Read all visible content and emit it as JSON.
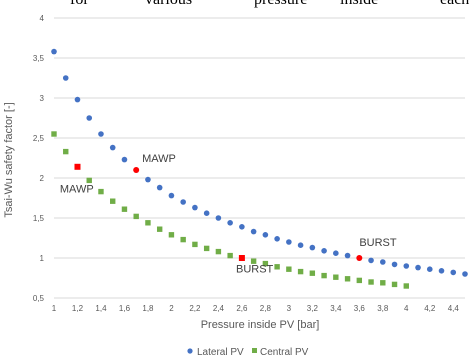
{
  "header_words": [
    "for",
    "various",
    "pressure",
    "inside",
    "each"
  ],
  "chart_data": {
    "type": "scatter",
    "title": "",
    "xlabel": "Pressure inside PV [bar]",
    "ylabel": "Tsai-Wu safety factor [-]",
    "xlim": [
      1,
      4.5
    ],
    "ylim": [
      0.5,
      4
    ],
    "xticks": [
      "1",
      "1,2",
      "1,4",
      "1,6",
      "1,8",
      "2",
      "2,2",
      "2,4",
      "2,6",
      "2,8",
      "3",
      "3,2",
      "3,4",
      "3,6",
      "3,8",
      "4",
      "4,2",
      "4,4"
    ],
    "yticks": [
      "0,5",
      "1",
      "1,5",
      "2",
      "2,5",
      "3",
      "3,5",
      "4"
    ],
    "grid": "horizontal",
    "legend_position": "bottom",
    "colors": {
      "lateral": "#4472C4",
      "central": "#70AD47",
      "highlight": "#FF0000"
    },
    "series": [
      {
        "name": "Lateral PV",
        "marker": "circle",
        "x": [
          1,
          1.1,
          1.2,
          1.3,
          1.4,
          1.5,
          1.6,
          1.7,
          1.8,
          1.9,
          2,
          2.1,
          2.2,
          2.3,
          2.4,
          2.5,
          2.6,
          2.7,
          2.8,
          2.9,
          3,
          3.1,
          3.2,
          3.3,
          3.4,
          3.5,
          3.6,
          3.7,
          3.8,
          3.9,
          4,
          4.1,
          4.2,
          4.3,
          4.4,
          4.5
        ],
        "y": [
          3.58,
          3.25,
          2.98,
          2.75,
          2.55,
          2.38,
          2.23,
          2.1,
          1.98,
          1.88,
          1.78,
          1.7,
          1.63,
          1.56,
          1.5,
          1.44,
          1.39,
          1.33,
          1.29,
          1.24,
          1.2,
          1.16,
          1.13,
          1.09,
          1.06,
          1.03,
          1.0,
          0.97,
          0.95,
          0.92,
          0.9,
          0.88,
          0.86,
          0.84,
          0.82,
          0.8
        ]
      },
      {
        "name": "Central PV",
        "marker": "square",
        "x": [
          1,
          1.1,
          1.2,
          1.3,
          1.4,
          1.5,
          1.6,
          1.7,
          1.8,
          1.9,
          2,
          2.1,
          2.2,
          2.3,
          2.4,
          2.5,
          2.6,
          2.7,
          2.8,
          2.9,
          3,
          3.1,
          3.2,
          3.3,
          3.4,
          3.5,
          3.6,
          3.7,
          3.8,
          3.9,
          4
        ],
        "y": [
          2.55,
          2.33,
          2.14,
          1.97,
          1.83,
          1.71,
          1.61,
          1.52,
          1.44,
          1.36,
          1.29,
          1.23,
          1.17,
          1.12,
          1.08,
          1.03,
          1.0,
          0.96,
          0.93,
          0.89,
          0.86,
          0.83,
          0.81,
          0.78,
          0.76,
          0.74,
          0.72,
          0.7,
          0.69,
          0.67,
          0.65
        ]
      }
    ],
    "highlights": [
      {
        "series": "Lateral PV",
        "x": 1.7,
        "y": 2.1
      },
      {
        "series": "Lateral PV",
        "x": 3.6,
        "y": 1.0
      },
      {
        "series": "Central PV",
        "x": 1.2,
        "y": 2.14
      },
      {
        "series": "Central PV",
        "x": 2.6,
        "y": 1.0
      }
    ],
    "annotations": [
      {
        "text": "MAWP",
        "x": 1.75,
        "y": 2.2
      },
      {
        "text": "MAWP",
        "x": 1.05,
        "y": 1.82
      },
      {
        "text": "BURST",
        "x": 3.6,
        "y": 1.15
      },
      {
        "text": "BURST",
        "x": 2.55,
        "y": 0.82
      }
    ]
  }
}
